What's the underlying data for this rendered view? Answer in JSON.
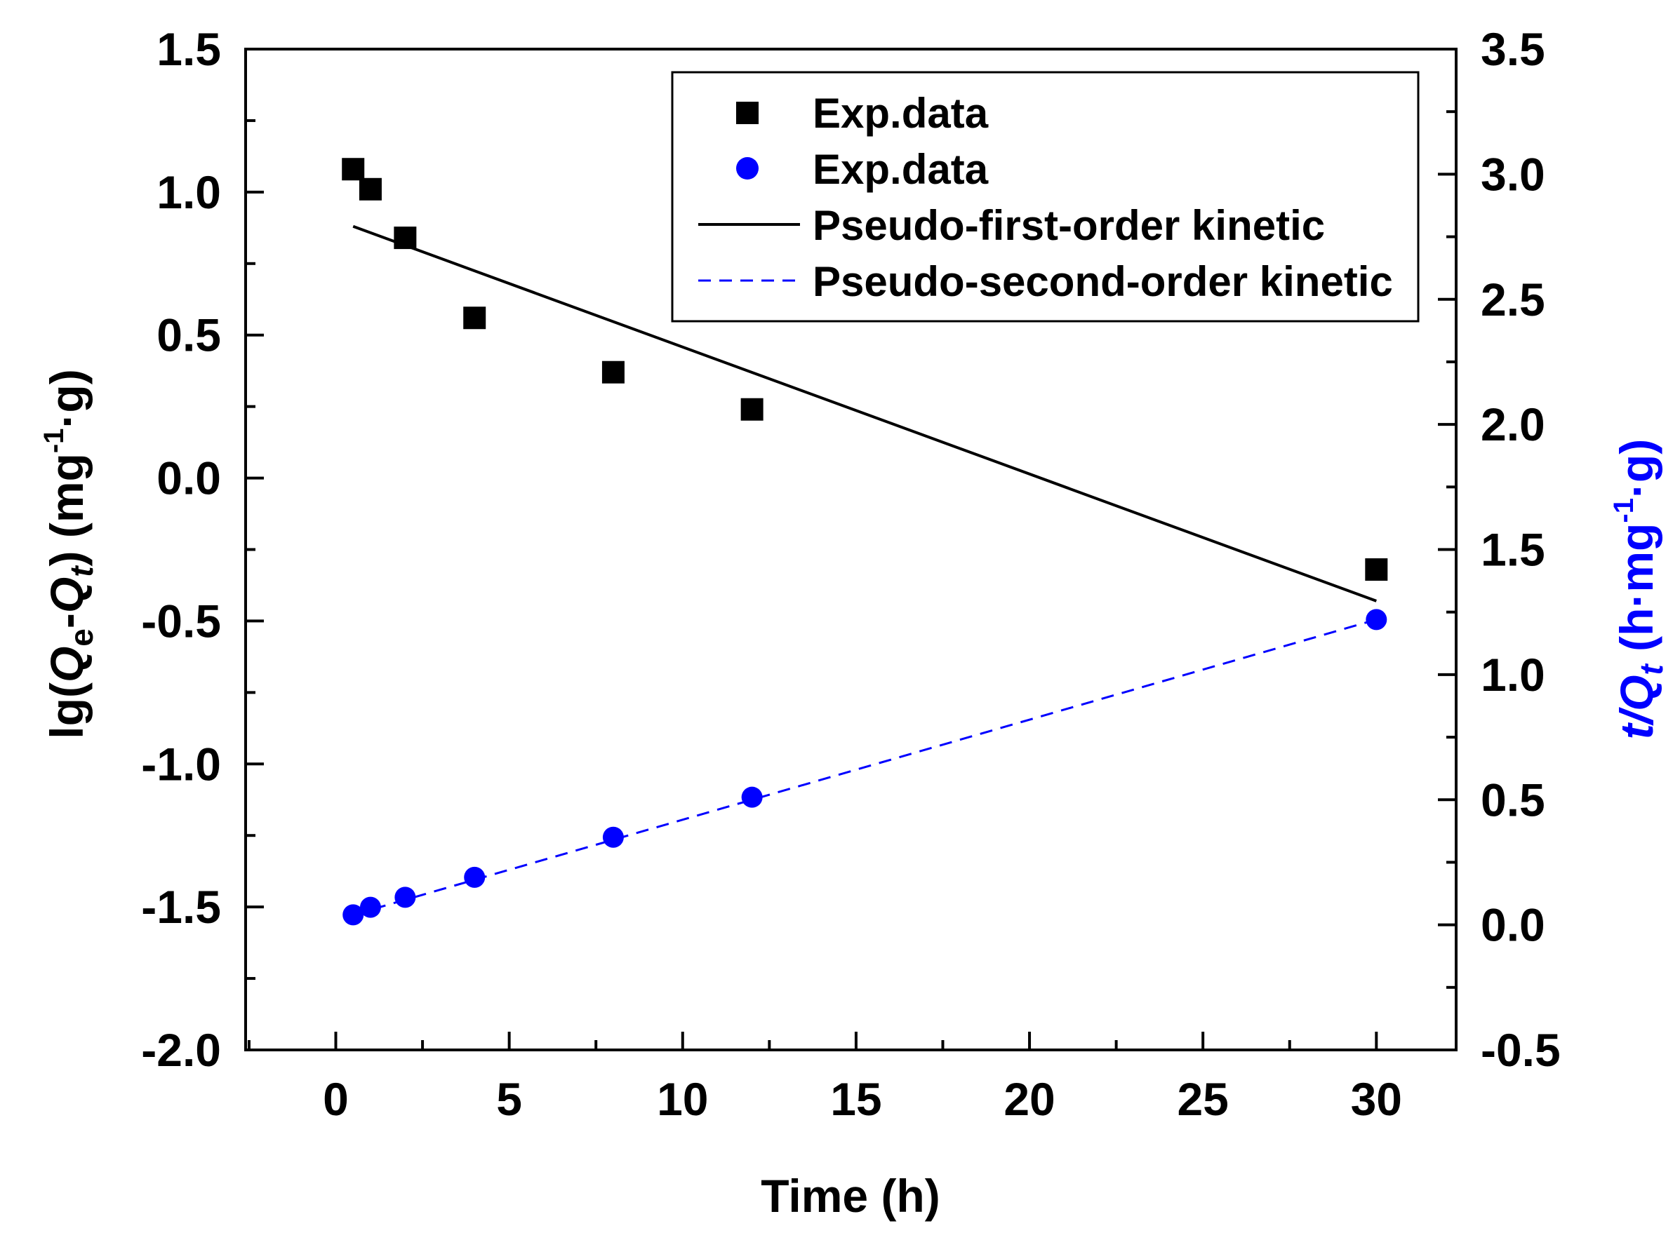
{
  "chart_data": {
    "type": "scatter",
    "title": "",
    "xlabel": "Time (h)",
    "ylabel_left": {
      "prefix": "lg(",
      "Q": "Q",
      "e": "e",
      "dash": "-",
      "Q2": "Q",
      "t": "t",
      "suffix": ") (mg",
      "sup": "-1",
      "end": "·g)"
    },
    "ylabel_right": {
      "t": "t/",
      "Q": "Q",
      "sub": "t",
      "mid": " (h·mg",
      "sup": "-1",
      "end": "·g)"
    },
    "xlim": [
      -2.6,
      32.3
    ],
    "ylim_left": [
      -2.0,
      1.5
    ],
    "ylim_right": [
      -0.5,
      3.5
    ],
    "x_ticks": [
      "0",
      "5",
      "10",
      "15",
      "20",
      "25",
      "30"
    ],
    "y_ticks_left": [
      "1.5",
      "1.0",
      "0.5",
      "0.0",
      "-0.5",
      "-1.0",
      "-1.5",
      "-2.0"
    ],
    "y_ticks_right": [
      "3.5",
      "3.0",
      "2.5",
      "2.0",
      "1.5",
      "1.0",
      "0.5",
      "0.0",
      "-0.5"
    ],
    "colors": {
      "first": "#000000",
      "second": "#0000ff"
    },
    "series": [
      {
        "name": "Exp.data",
        "axis": "left",
        "marker": "square",
        "color": "#000000",
        "x": [
          0.5,
          1,
          2,
          4,
          8,
          12,
          30
        ],
        "y": [
          1.08,
          1.01,
          0.84,
          0.56,
          0.37,
          0.24,
          -0.32
        ]
      },
      {
        "name": "Exp.data",
        "axis": "right",
        "marker": "circle",
        "color": "#0000ff",
        "x": [
          0.5,
          1,
          2,
          4,
          8,
          12,
          30
        ],
        "y": [
          0.04,
          0.07,
          0.11,
          0.19,
          0.35,
          0.51,
          1.22
        ]
      },
      {
        "name": "Pseudo-first-order kinetic",
        "axis": "left",
        "line": "solid",
        "color": "#000000",
        "x": [
          0.5,
          30
        ],
        "y": [
          0.88,
          -0.43
        ]
      },
      {
        "name": "Pseudo-second-order kinetic",
        "axis": "right",
        "line": "dashed",
        "color": "#0000ff",
        "x": [
          0.5,
          30
        ],
        "y": [
          0.04,
          1.22
        ]
      }
    ],
    "legend": {
      "position": "top-right",
      "entries": [
        "Exp.data",
        "Exp.data",
        "Pseudo-first-order kinetic",
        "Pseudo-second-order kinetic"
      ]
    }
  }
}
